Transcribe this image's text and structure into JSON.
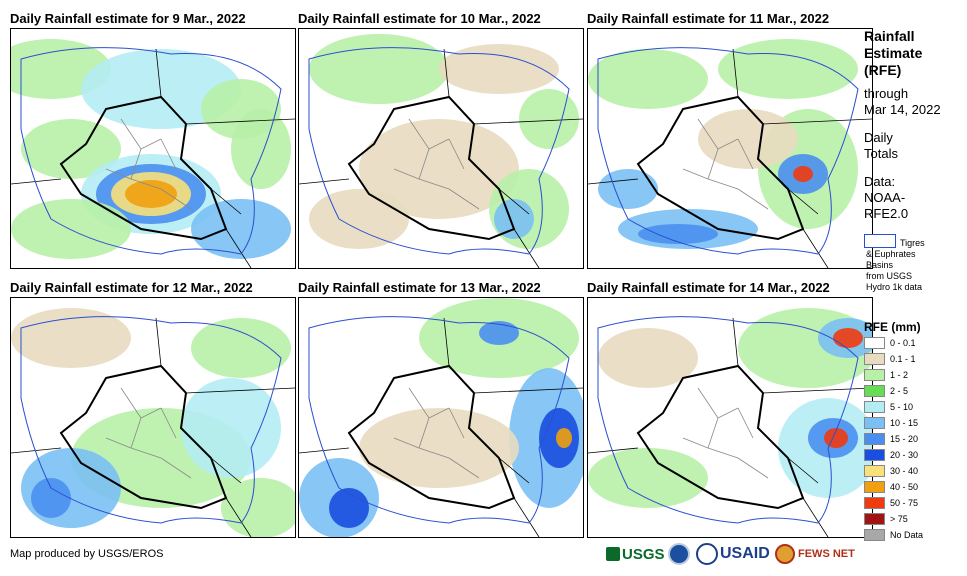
{
  "panels": [
    {
      "title": "Daily Rainfall estimate for 9 Mar., 2022"
    },
    {
      "title": "Daily Rainfall estimate for 10 Mar., 2022"
    },
    {
      "title": "Daily Rainfall estimate for 11 Mar., 2022"
    },
    {
      "title": "Daily Rainfall estimate for 12 Mar., 2022"
    },
    {
      "title": "Daily Rainfall estimate for 13 Mar., 2022"
    },
    {
      "title": "Daily Rainfall estimate for 14 Mar., 2022"
    }
  ],
  "side": {
    "title_lines": [
      "Rainfall",
      "Estimate",
      "(RFE)"
    ],
    "through": "through",
    "date": "Mar 14, 2022",
    "totals_lines": [
      "Daily",
      "Totals"
    ],
    "data_lines": [
      "Data:",
      "NOAA-",
      "RFE2.0"
    ],
    "basin_lines": [
      "Tigres",
      "& Euphrates",
      "Basins",
      "from USGS",
      "Hydro 1k data"
    ]
  },
  "legend": {
    "title": "RFE (mm)",
    "items": [
      {
        "label": "0 - 0.1",
        "color": "#ffffff"
      },
      {
        "label": "0.1 - 1",
        "color": "#e8dcc0"
      },
      {
        "label": "1 - 2",
        "color": "#b8f0a8"
      },
      {
        "label": "2 - 5",
        "color": "#66dd55"
      },
      {
        "label": "5 - 10",
        "color": "#b4ecf4"
      },
      {
        "label": "10 - 15",
        "color": "#7ac0f4"
      },
      {
        "label": "15 - 20",
        "color": "#4a8ff0"
      },
      {
        "label": "20 - 30",
        "color": "#1a4ee0"
      },
      {
        "label": "30 - 40",
        "color": "#f8e07a"
      },
      {
        "label": "40 - 50",
        "color": "#f0a010"
      },
      {
        "label": "50 - 75",
        "color": "#f03a10"
      },
      {
        "label": "> 75",
        "color": "#a01414"
      },
      {
        "label": "No Data",
        "color": "#a8a8a8"
      }
    ]
  },
  "footer": {
    "credit": "Map produced by USGS/EROS"
  },
  "logos": {
    "usgs": "USGS",
    "usaid": "USAID",
    "fews": "FEWS NET"
  }
}
